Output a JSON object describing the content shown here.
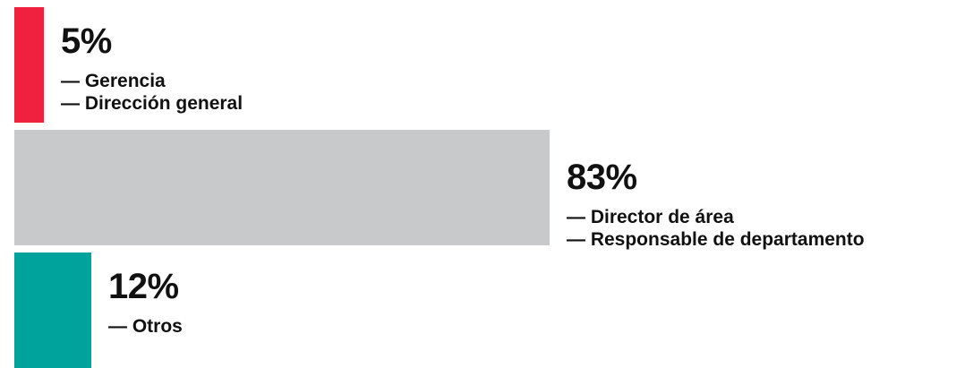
{
  "chart_data": {
    "type": "bar",
    "orientation": "horizontal",
    "series": [
      {
        "value": 5,
        "label": "5%",
        "color": "#f0203f",
        "items": [
          "— Gerencia",
          "— Dirección general"
        ]
      },
      {
        "value": 83,
        "label": "83%",
        "color": "#c8c9cb",
        "items": [
          "— Director de área",
          "— Responsable de departamento"
        ]
      },
      {
        "value": 12,
        "label": "12%",
        "color": "#00a39c",
        "items": [
          "— Otros"
        ]
      }
    ],
    "unit": "%",
    "title": "",
    "xlabel": "",
    "ylabel": ""
  }
}
